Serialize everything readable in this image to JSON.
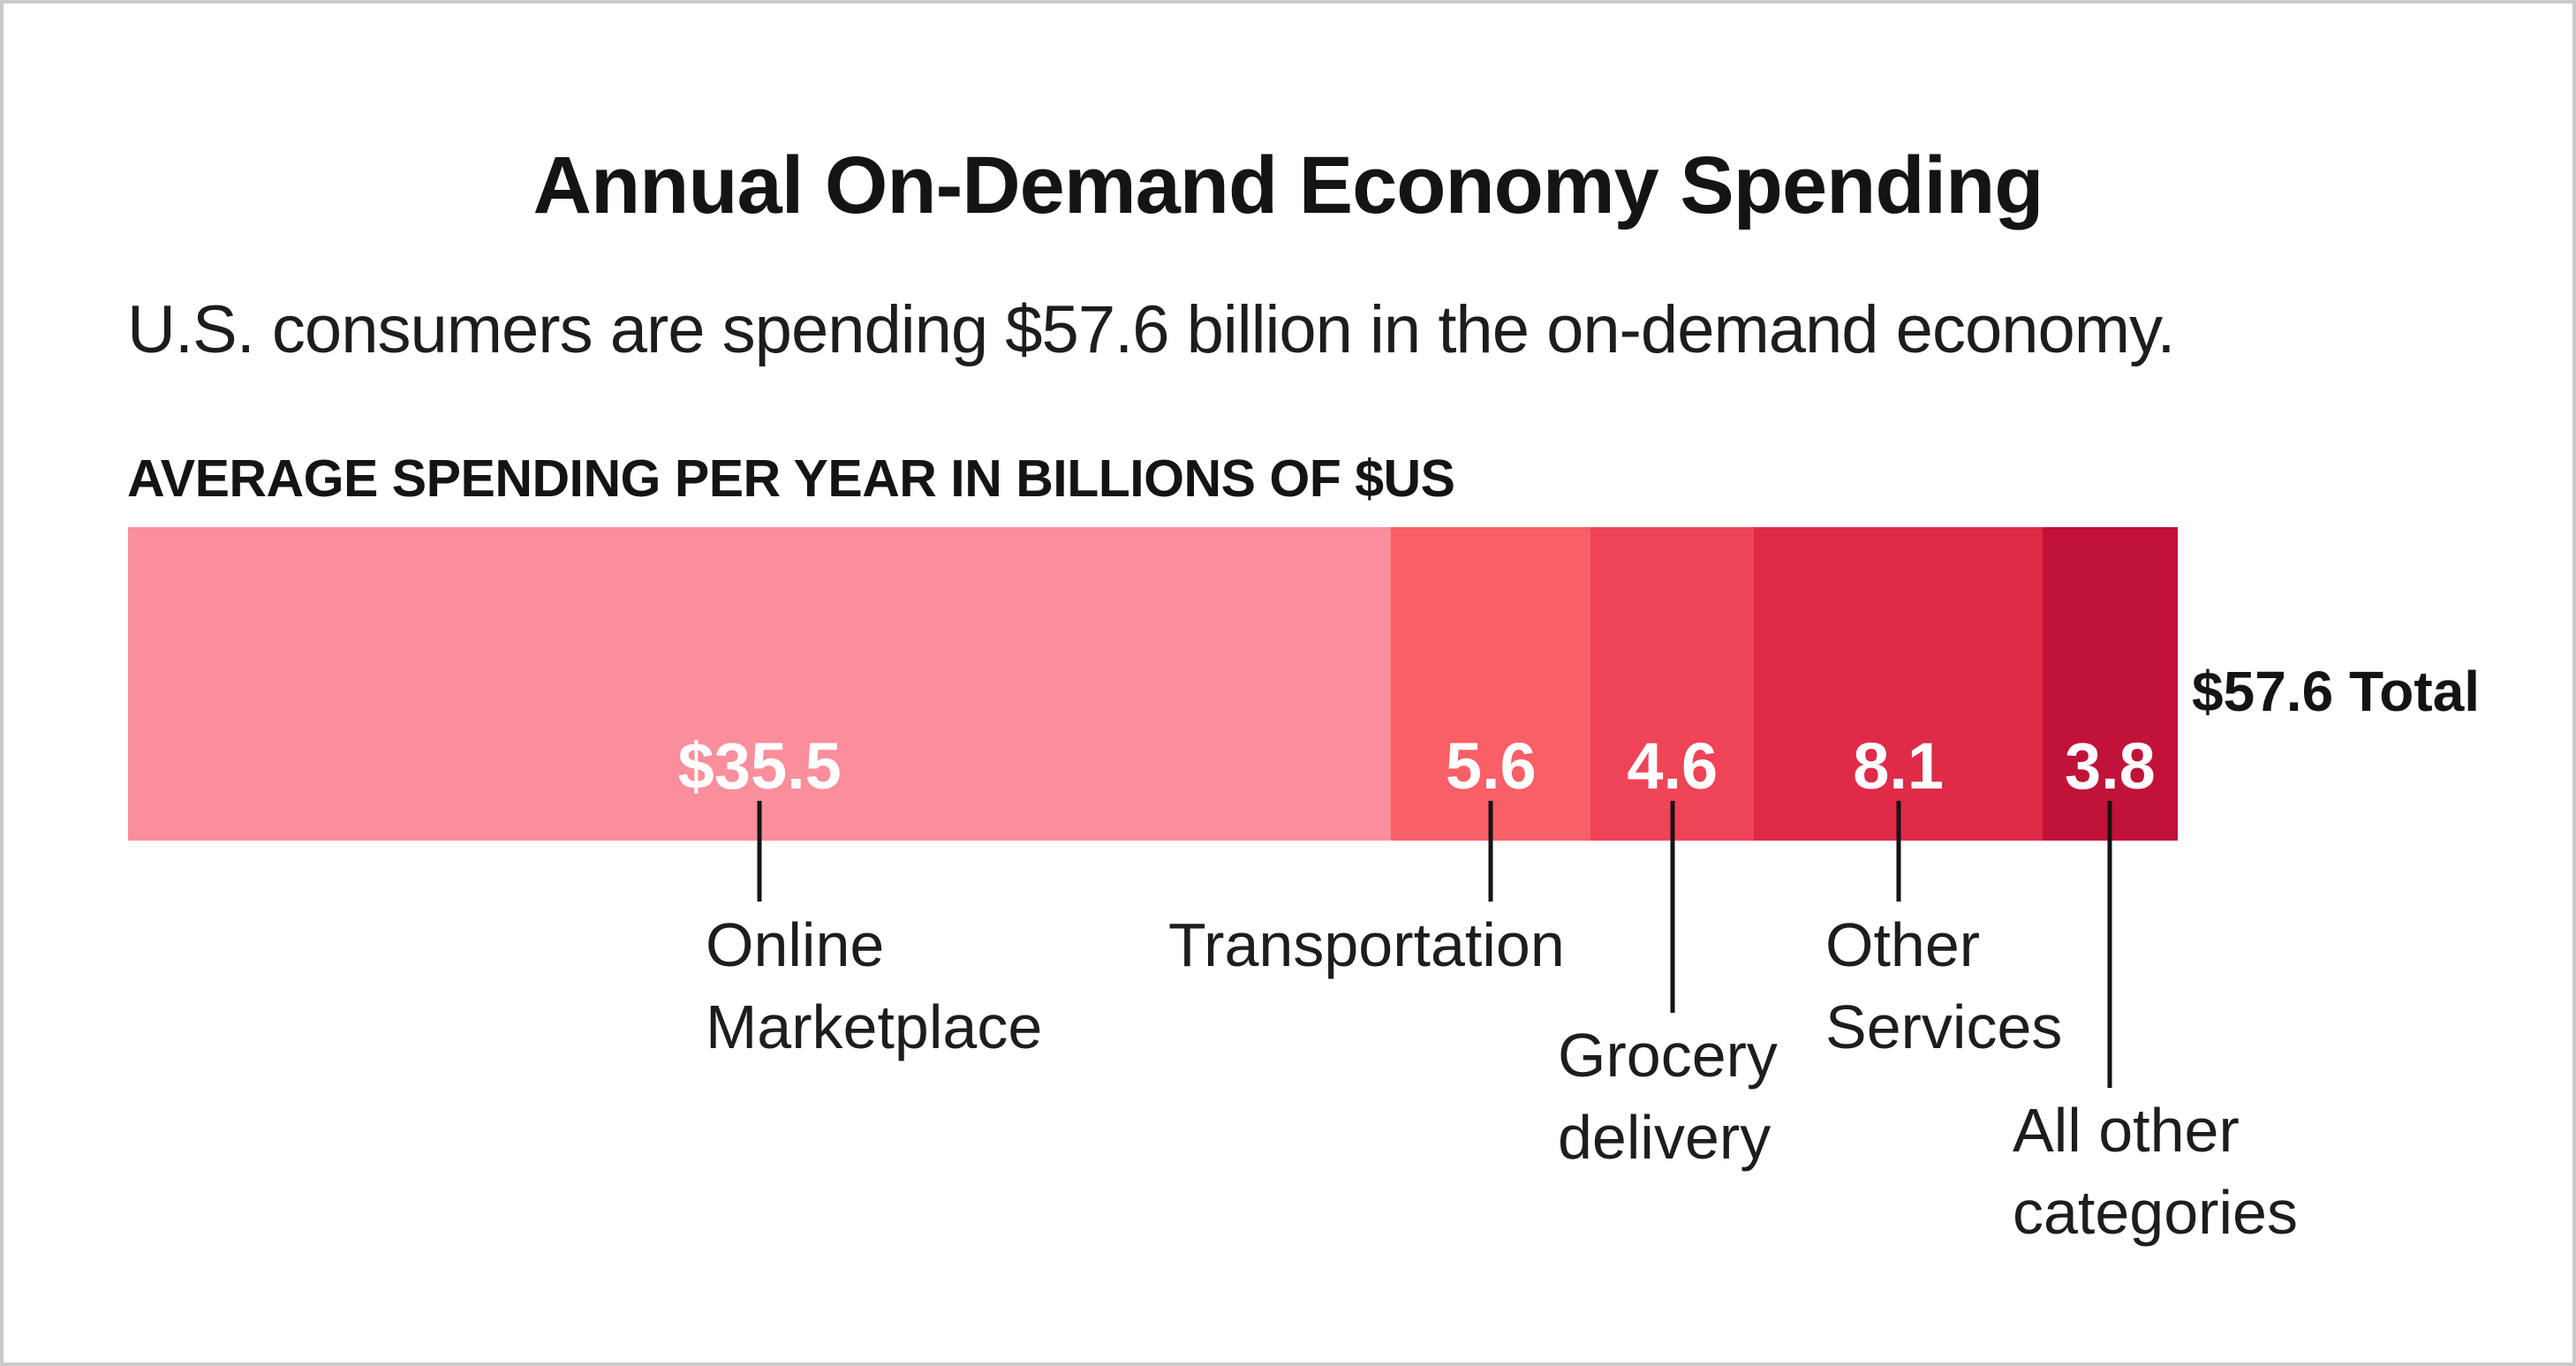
{
  "page": {
    "title": "Annual On-Demand Economy Spending",
    "subtitle": "U.S. consumers are spending $57.6 billion in the on-demand economy."
  },
  "chart_data": {
    "type": "bar",
    "variant": "single-stacked-horizontal-bar",
    "title": "Annual On-Demand Economy Spending",
    "subtitle": "U.S. consumers are spending $57.6 billion in the on-demand economy.",
    "section_label": "AVERAGE SPENDING PER YEAR IN BILLIONS OF $US",
    "unit": "billions of $US",
    "total": 57.6,
    "total_label": "$57.6 Total",
    "xlim": [
      0,
      57.6
    ],
    "grid": false,
    "legend_position": "none (direct callout labels below bar)",
    "segments": [
      {
        "category": "Online Marketplace",
        "value": 35.5,
        "display": "$35.5",
        "color": "#FA8E9B",
        "callout_label": "Online\nMarketplace"
      },
      {
        "category": "Transportation",
        "value": 5.6,
        "display": "5.6",
        "color": "#F85F66",
        "callout_label": "Transportation"
      },
      {
        "category": "Grocery delivery",
        "value": 4.6,
        "display": "4.6",
        "color": "#EF4457",
        "callout_label": "Grocery\ndelivery"
      },
      {
        "category": "Other Services",
        "value": 8.1,
        "display": "8.1",
        "color": "#DF2A48",
        "callout_label": "Other\nServices"
      },
      {
        "category": "All other categories",
        "value": 3.8,
        "display": "3.8",
        "color": "#C11239",
        "callout_label": "All other\ncategories"
      }
    ]
  }
}
